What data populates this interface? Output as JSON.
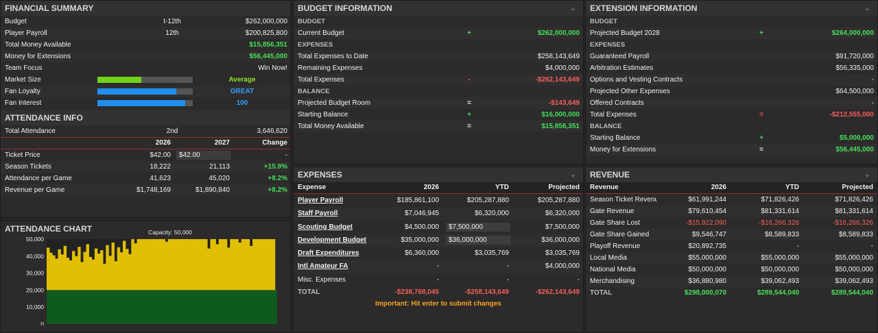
{
  "financial": {
    "title": "FINANCIAL SUMMARY",
    "rows": [
      {
        "label": "Budget",
        "mid": "t-12th",
        "value": "$262,000,000",
        "color": "white"
      },
      {
        "label": "Player Payroll",
        "mid": "12th",
        "value": "$200,825,800",
        "color": "white"
      },
      {
        "label": "Total Money Available",
        "mid": "",
        "value": "$15,856,351",
        "color": "green"
      },
      {
        "label": "Money for Extensions",
        "mid": "",
        "value": "$56,445,000",
        "color": "green"
      },
      {
        "label": "Team Focus",
        "mid": "",
        "value": "Win Now!",
        "color": "white"
      }
    ],
    "meters": [
      {
        "label": "Market Size",
        "text": "Average",
        "level": 0.46,
        "bar_color": "#6fd21c",
        "text_color": "ygreen"
      },
      {
        "label": "Fan Loyalty",
        "text": "GREAT",
        "level": 0.83,
        "bar_color": "#1e8ff0",
        "text_color": "blue"
      },
      {
        "label": "Fan Interest",
        "text": "100",
        "level": 0.92,
        "bar_color": "#1e8ff0",
        "text_color": "blue"
      }
    ]
  },
  "attendance": {
    "title": "ATTENDANCE INFO",
    "total_label": "Total Attendance",
    "total_rank": "2nd",
    "total_value": "3,646,620",
    "headers": [
      "2026",
      "2027",
      "Change"
    ],
    "rows": [
      {
        "label": "Ticket Price",
        "y2026": "$42.00",
        "y2027": "$42.00",
        "change": "-"
      },
      {
        "label": "Season Tickets",
        "y2026": "18,222",
        "y2027": "21,113",
        "change": "+15.9%"
      },
      {
        "label": "Attendance per Game",
        "y2026": "41,623",
        "y2027": "45,020",
        "change": "+8.2%"
      },
      {
        "label": "Revenue per Game",
        "y2026": "$1,748,169",
        "y2027": "$1,890,840",
        "change": "+8.2%"
      }
    ]
  },
  "chart_data": {
    "type": "bar",
    "title": "ATTENDANCE CHART",
    "subtitle": "Capacity: 50,000",
    "yticks": [
      "50,000",
      "40,000",
      "30,000",
      "20,000",
      "10,000",
      "0"
    ],
    "ylim": [
      0,
      50000
    ],
    "capacity": 50000,
    "season_tickets": 20000,
    "colors": {
      "attendance": "#e0bf05",
      "season": "#0f5a1e",
      "gap": "#222"
    },
    "values": [
      45000,
      42000,
      40500,
      38500,
      44000,
      41000,
      46000,
      39000,
      37500,
      43000,
      40000,
      45500,
      36500,
      42500,
      47000,
      39500,
      38000,
      44500,
      41500,
      43500,
      35500,
      46500,
      40200,
      48000,
      37000,
      45200,
      42200,
      49000,
      44200,
      41200,
      50000,
      47500,
      50000,
      50000,
      50000,
      50000,
      50000,
      50000,
      50000,
      50000,
      50000,
      50000,
      48500,
      50000,
      50000,
      50000,
      50000,
      50000,
      50000,
      50000,
      50000,
      50000,
      50000,
      50000,
      50000,
      50000,
      50000,
      44500,
      50000,
      50000,
      47000,
      50000,
      50000,
      50000,
      45000,
      50000,
      50000,
      50000,
      48000,
      50000,
      50000,
      50000,
      46000,
      50000,
      50000,
      50000,
      50000,
      50000,
      50000,
      50000,
      50000
    ]
  },
  "budget": {
    "title": "BUDGET INFORMATION",
    "rows": [
      {
        "kind": "sec",
        "label": "BUDGET"
      },
      {
        "label": "Current Budget",
        "op": "+",
        "op_color": "green",
        "value": "$262,000,000",
        "color": "green"
      },
      {
        "kind": "sec",
        "label": "EXPENSES"
      },
      {
        "label": "Total Expenses to Date",
        "op": "",
        "op_color": "white",
        "value": "$258,143,649",
        "color": "white"
      },
      {
        "label": "Remaining Expenses",
        "op": "",
        "op_color": "white",
        "value": "$4,000,000",
        "color": "white"
      },
      {
        "label": "Total Expenses",
        "op": "-",
        "op_color": "red",
        "value": "-$262,143,649",
        "color": "red"
      },
      {
        "kind": "sec",
        "label": "BALANCE"
      },
      {
        "label": "Projected Budget Room",
        "op": "=",
        "op_color": "white",
        "value": "-$143,649",
        "color": "red"
      },
      {
        "label": "Starting Balance",
        "op": "+",
        "op_color": "green",
        "value": "$16,000,000",
        "color": "green"
      },
      {
        "label": "Total Money Available",
        "op": "=",
        "op_color": "white",
        "value": "$15,856,351",
        "color": "green"
      }
    ]
  },
  "extension": {
    "title": "EXTENSION INFORMATION",
    "rows": [
      {
        "kind": "sec",
        "label": "BUDGET"
      },
      {
        "label": "Projected Budget 2028",
        "op": "+",
        "op_color": "green",
        "value": "$264,000,000",
        "color": "green"
      },
      {
        "kind": "sec",
        "label": "EXPENSES"
      },
      {
        "label": "Guaranteed Payroll",
        "op": "",
        "op_color": "white",
        "value": "$91,720,000",
        "color": "white"
      },
      {
        "label": "Arbitration Estimates",
        "op": "",
        "op_color": "white",
        "value": "$56,335,000",
        "color": "white"
      },
      {
        "label": "Options and Vesting Contracts",
        "op": "",
        "op_color": "white",
        "value": "-",
        "color": "white"
      },
      {
        "label": "Projected Other Expenses",
        "op": "",
        "op_color": "white",
        "value": "$64,500,000",
        "color": "white"
      },
      {
        "label": "Offered Contracts",
        "op": "",
        "op_color": "white",
        "value": "-",
        "color": "white"
      },
      {
        "label": "Total Expenses",
        "op": "=",
        "op_color": "red",
        "value": "-$212,555,000",
        "color": "red"
      },
      {
        "kind": "sec",
        "label": "BALANCE"
      },
      {
        "label": "Starting Balance",
        "op": "+",
        "op_color": "green",
        "value": "$5,000,000",
        "color": "green"
      },
      {
        "label": "Money for Extensions",
        "op": "=",
        "op_color": "white",
        "value": "$56,445,000",
        "color": "green"
      }
    ]
  },
  "expenses": {
    "title": "EXPENSES",
    "headers": [
      "Expense",
      "2026",
      "YTD",
      "Projected"
    ],
    "rows": [
      {
        "label": "Player Payroll",
        "link": true,
        "y2026": "$185,861,100",
        "ytd": "$205,287,880",
        "ytd_input": false,
        "proj": "$205,287,880"
      },
      {
        "label": "Staff Payroll",
        "link": true,
        "y2026": "$7,046,945",
        "ytd": "$6,320,000",
        "ytd_input": false,
        "proj": "$6,320,000"
      },
      {
        "label": "Scouting Budget",
        "link": true,
        "y2026": "$4,500,000",
        "ytd": "$7,500,000",
        "ytd_input": true,
        "proj": "$7,500,000"
      },
      {
        "label": "Development Budget",
        "link": true,
        "y2026": "$35,000,000",
        "ytd": "$36,000,000",
        "ytd_input": true,
        "proj": "$36,000,000"
      },
      {
        "label": "Draft Expenditures",
        "link": true,
        "y2026": "$6,360,000",
        "ytd": "$3,035,769",
        "ytd_input": false,
        "proj": "$3,035,769"
      },
      {
        "label": "Intl Amateur FA",
        "link": true,
        "y2026": "-",
        "ytd": "-",
        "ytd_input": false,
        "proj": "$4,000,000"
      },
      {
        "label": "Misc. Expenses",
        "link": false,
        "y2026": "-",
        "ytd": "-",
        "ytd_input": false,
        "proj": "-"
      }
    ],
    "total": {
      "label": "TOTAL",
      "y2026": "-$238,768,045",
      "ytd": "-$258,143,649",
      "proj": "-$262,143,649"
    },
    "note": "Important: Hit enter to submit changes"
  },
  "revenue": {
    "title": "REVENUE",
    "headers": [
      "Revenue",
      "2026",
      "YTD",
      "Projected"
    ],
    "rows": [
      {
        "label": "Season Ticket Revenue",
        "y2026": "$61,991,244",
        "ytd": "$71,826,426",
        "proj": "$71,826,426",
        "color": "white"
      },
      {
        "label": "Gate Revenue",
        "y2026": "$79,610,454",
        "ytd": "$81,331,614",
        "proj": "$81,331,614",
        "color": "white"
      },
      {
        "label": "Gate Share Lost",
        "y2026": "-$15,922,090",
        "ytd": "-$16,266,326",
        "proj": "-$16,266,326",
        "color": "red"
      },
      {
        "label": "Gate Share Gained",
        "y2026": "$9,546,747",
        "ytd": "$8,589,833",
        "proj": "$8,589,833",
        "color": "white"
      },
      {
        "label": "Playoff Revenue",
        "y2026": "$20,892,735",
        "ytd": "-",
        "proj": "-",
        "color": "white"
      },
      {
        "label": "Local Media",
        "y2026": "$55,000,000",
        "ytd": "$55,000,000",
        "proj": "$55,000,000",
        "color": "white"
      },
      {
        "label": "National Media",
        "y2026": "$50,000,000",
        "ytd": "$50,000,000",
        "proj": "$50,000,000",
        "color": "white"
      },
      {
        "label": "Merchandising",
        "y2026": "$36,880,980",
        "ytd": "$39,062,493",
        "proj": "$39,062,493",
        "color": "white"
      }
    ],
    "total": {
      "label": "TOTAL",
      "y2026": "$298,000,070",
      "ytd": "$289,544,040",
      "proj": "$289,544,040"
    }
  }
}
